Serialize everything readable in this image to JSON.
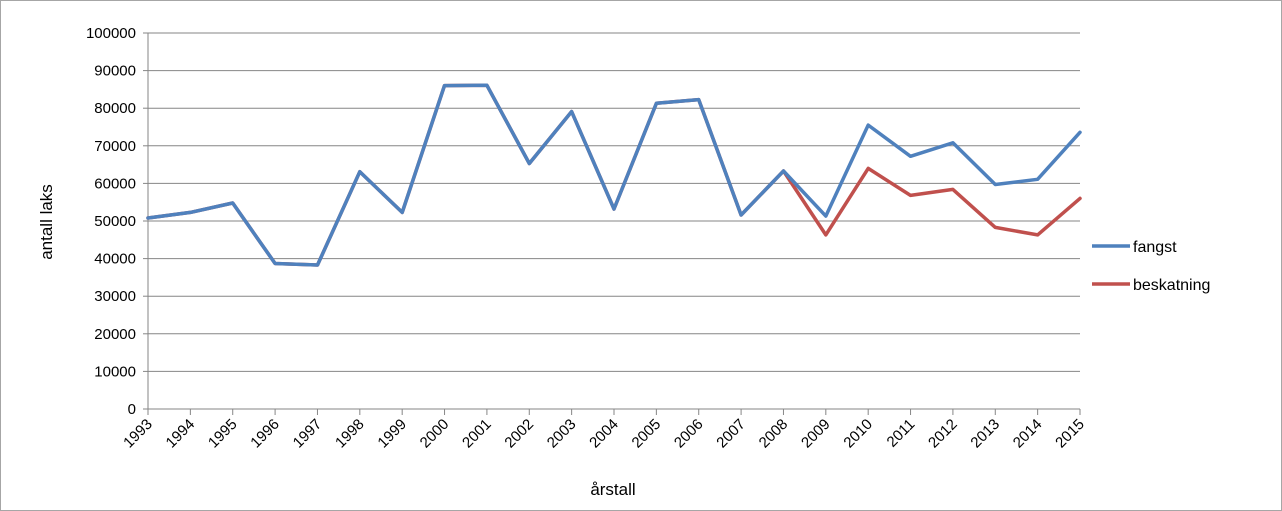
{
  "chart_data": {
    "type": "line",
    "title": "",
    "xlabel": "årstall",
    "ylabel": "antall laks",
    "ylim": [
      0,
      100000
    ],
    "yticks": [
      0,
      10000,
      20000,
      30000,
      40000,
      50000,
      60000,
      70000,
      80000,
      90000,
      100000
    ],
    "categories": [
      "1993",
      "1994",
      "1995",
      "1996",
      "1997",
      "1998",
      "1999",
      "2000",
      "2001",
      "2002",
      "2003",
      "2004",
      "2005",
      "2006",
      "2007",
      "2008",
      "2009",
      "2010",
      "2011",
      "2012",
      "2013",
      "2014",
      "2015"
    ],
    "grid": true,
    "legend_position": "right",
    "series": [
      {
        "name": "fangst",
        "color": "#4f81bd",
        "values": [
          50800,
          52300,
          54800,
          38700,
          38300,
          63100,
          52300,
          86000,
          86100,
          65300,
          79100,
          53200,
          81300,
          82300,
          51600,
          63300,
          51300,
          75500,
          67200,
          70800,
          59700,
          61100,
          73600
        ]
      },
      {
        "name": "beskatning",
        "color": "#c0504d",
        "values": [
          50800,
          52300,
          54800,
          38700,
          38300,
          63100,
          52300,
          86000,
          86100,
          65300,
          79100,
          53200,
          81300,
          82300,
          51600,
          63300,
          46300,
          64000,
          56800,
          58400,
          48300,
          46300,
          56000
        ]
      }
    ]
  }
}
